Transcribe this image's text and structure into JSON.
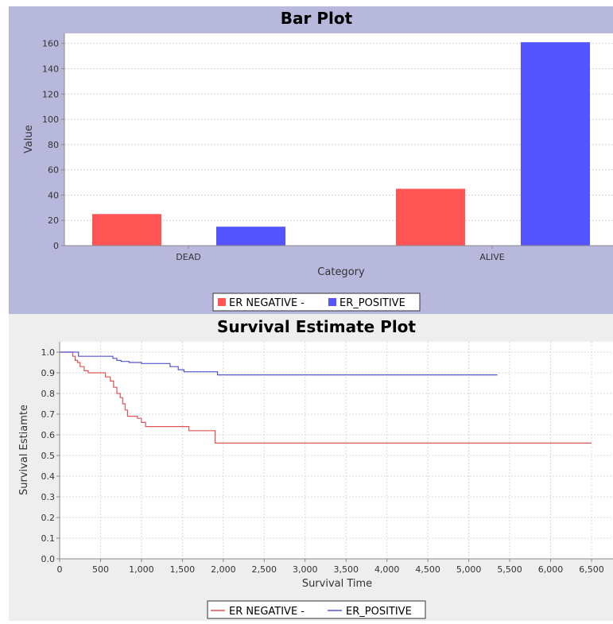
{
  "chart_data": [
    {
      "type": "bar",
      "title": "Bar Plot",
      "xlabel": "Category",
      "ylabel": "Value",
      "categories": [
        "DEAD",
        "ALIVE"
      ],
      "series": [
        {
          "name": "ER NEGATIVE -",
          "values": [
            25,
            45
          ]
        },
        {
          "name": "ER_POSITIVE",
          "values": [
            15,
            161
          ]
        }
      ],
      "ylim": [
        0,
        168
      ],
      "yticks": [
        "0",
        "20",
        "40",
        "60",
        "80",
        "100",
        "120",
        "140",
        "160"
      ],
      "ytick_values": [
        0,
        20,
        40,
        60,
        80,
        100,
        120,
        140,
        160
      ],
      "colors": {
        "ER NEGATIVE -": "#ff5555",
        "ER_POSITIVE": "#5555ff",
        "background": "#b8b8dc",
        "plot_bg": "#ffffff"
      },
      "grid": true,
      "legend": "bottom-center"
    },
    {
      "type": "line",
      "title": "Survival Estimate Plot",
      "xlabel": "Survival Time",
      "ylabel": "Survival Estiamte",
      "xlim": [
        0,
        6500
      ],
      "ylim": [
        0,
        1.05
      ],
      "xticks": [
        "0",
        "500",
        "1,000",
        "1,500",
        "2,000",
        "2,500",
        "3,000",
        "3,500",
        "4,000",
        "4,500",
        "5,000",
        "5,500",
        "6,000",
        "6,500"
      ],
      "xtick_values": [
        0,
        500,
        1000,
        1500,
        2000,
        2500,
        3000,
        3500,
        4000,
        4500,
        5000,
        5500,
        6000,
        6500
      ],
      "yticks": [
        "0.0",
        "0.1",
        "0.2",
        "0.3",
        "0.4",
        "0.5",
        "0.6",
        "0.7",
        "0.8",
        "0.9",
        "1.0"
      ],
      "ytick_values": [
        0,
        0.1,
        0.2,
        0.3,
        0.4,
        0.5,
        0.6,
        0.7,
        0.8,
        0.9,
        1.0
      ],
      "series": [
        {
          "name": "ER NEGATIVE -",
          "color": "#dd5555",
          "points": [
            [
              0,
              1.0
            ],
            [
              150,
              1.0
            ],
            [
              160,
              0.98
            ],
            [
              190,
              0.96
            ],
            [
              220,
              0.95
            ],
            [
              250,
              0.93
            ],
            [
              300,
              0.91
            ],
            [
              350,
              0.9
            ],
            [
              500,
              0.9
            ],
            [
              560,
              0.88
            ],
            [
              620,
              0.86
            ],
            [
              660,
              0.83
            ],
            [
              700,
              0.8
            ],
            [
              740,
              0.78
            ],
            [
              770,
              0.75
            ],
            [
              800,
              0.72
            ],
            [
              830,
              0.69
            ],
            [
              950,
              0.68
            ],
            [
              1000,
              0.66
            ],
            [
              1050,
              0.64
            ],
            [
              1550,
              0.64
            ],
            [
              1580,
              0.62
            ],
            [
              1880,
              0.62
            ],
            [
              1900,
              0.56
            ],
            [
              6500,
              0.56
            ]
          ]
        },
        {
          "name": "ER_POSITIVE",
          "color": "#5555cc",
          "points": [
            [
              0,
              1.0
            ],
            [
              200,
              1.0
            ],
            [
              230,
              0.98
            ],
            [
              600,
              0.98
            ],
            [
              650,
              0.97
            ],
            [
              700,
              0.96
            ],
            [
              750,
              0.955
            ],
            [
              850,
              0.95
            ],
            [
              1000,
              0.945
            ],
            [
              1300,
              0.945
            ],
            [
              1350,
              0.93
            ],
            [
              1450,
              0.915
            ],
            [
              1520,
              0.905
            ],
            [
              1900,
              0.905
            ],
            [
              1930,
              0.89
            ],
            [
              5350,
              0.89
            ]
          ]
        }
      ],
      "colors": {
        "background": "#eeeeee",
        "plot_bg": "#ffffff"
      },
      "grid": true,
      "legend": "bottom-center"
    }
  ]
}
